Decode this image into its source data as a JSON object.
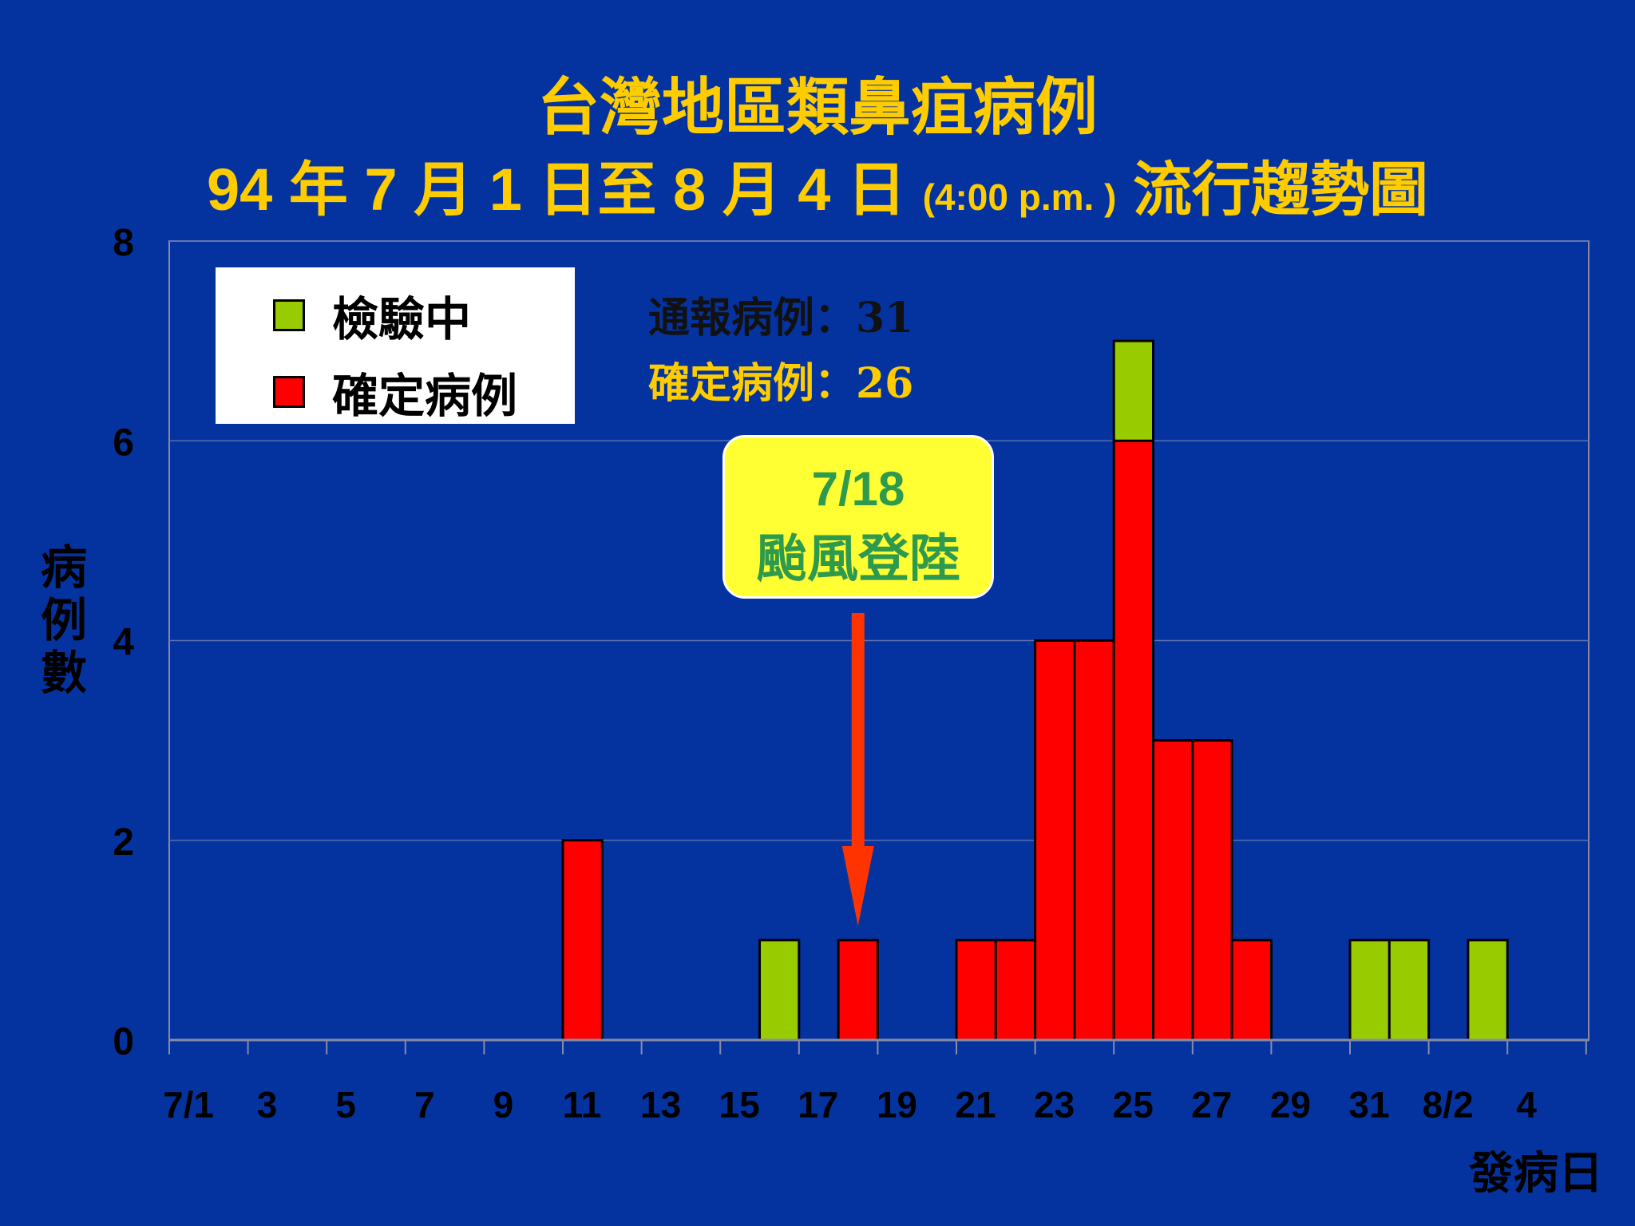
{
  "title_line1": "台灣地區類鼻疽病例",
  "title_line2_main": "94 年 7 月 1 日至 8 月 4 日",
  "title_line2_time": "(4:00 p.m. )",
  "title_line2_end": "流行趨勢圖",
  "legend": {
    "testing": "檢驗中",
    "confirmed": "確定病例"
  },
  "stats": {
    "reported": "通報病例：31",
    "confirmed": "確定病例：26"
  },
  "annotation": {
    "date": "7/18",
    "text": "颱風登陸"
  },
  "colors": {
    "background": "#0433a0",
    "confirmed": "#ff0000",
    "testing": "#99cc00",
    "title": "#ffcc00",
    "arrow": "#ff3300"
  },
  "chart_data": {
    "type": "bar",
    "stacked": true,
    "title": "台灣地區類鼻疽病例 94 年 7 月 1 日至 8 月 4 日 (4:00 p.m. ) 流行趨勢圖",
    "xlabel": "發病日",
    "ylabel": "病例數",
    "ylim": [
      0,
      8
    ],
    "yticks": [
      0,
      2,
      4,
      6,
      8
    ],
    "grid": true,
    "legend_position": "top-left",
    "x_tick_labels": [
      "7/1",
      "3",
      "5",
      "7",
      "9",
      "11",
      "13",
      "15",
      "17",
      "19",
      "21",
      "23",
      "25",
      "27",
      "29",
      "31",
      "8/2",
      "4"
    ],
    "categories": [
      "7/1",
      "7/2",
      "7/3",
      "7/4",
      "7/5",
      "7/6",
      "7/7",
      "7/8",
      "7/9",
      "7/10",
      "7/11",
      "7/12",
      "7/13",
      "7/14",
      "7/15",
      "7/16",
      "7/17",
      "7/18",
      "7/19",
      "7/20",
      "7/21",
      "7/22",
      "7/23",
      "7/24",
      "7/25",
      "7/26",
      "7/27",
      "7/28",
      "7/29",
      "7/30",
      "7/31",
      "8/1",
      "8/2",
      "8/3",
      "8/4"
    ],
    "series": [
      {
        "name": "確定病例",
        "values": [
          0,
          0,
          0,
          0,
          0,
          0,
          0,
          0,
          0,
          0,
          2,
          0,
          0,
          0,
          0,
          0,
          0,
          1,
          0,
          0,
          1,
          1,
          4,
          4,
          6,
          3,
          3,
          1,
          0,
          0,
          0,
          0,
          0,
          0,
          0
        ]
      },
      {
        "name": "檢驗中",
        "values": [
          0,
          0,
          0,
          0,
          0,
          0,
          0,
          0,
          0,
          0,
          0,
          0,
          0,
          0,
          0,
          1,
          0,
          0,
          0,
          0,
          0,
          0,
          0,
          0,
          1,
          0,
          0,
          0,
          0,
          0,
          1,
          1,
          0,
          1,
          0
        ]
      }
    ],
    "annotations": [
      {
        "x": "7/18",
        "text": "7/18 颱風登陸"
      }
    ]
  }
}
